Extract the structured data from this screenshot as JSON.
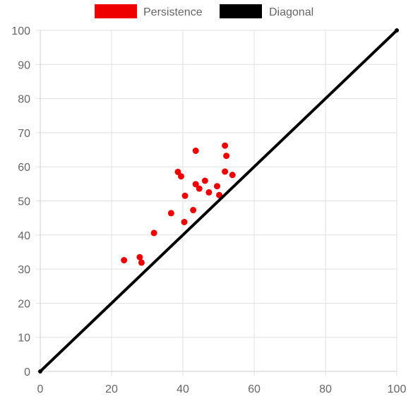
{
  "chart_data": {
    "type": "scatter",
    "title": "",
    "xlabel": "",
    "ylabel": "",
    "xlim": [
      0,
      100
    ],
    "ylim": [
      0,
      100
    ],
    "x_ticks": [
      "0",
      "20",
      "40",
      "60",
      "80",
      "100"
    ],
    "y_ticks": [
      "0",
      "10",
      "20",
      "30",
      "40",
      "50",
      "60",
      "70",
      "80",
      "90",
      "100"
    ],
    "grid": true,
    "legend_position": "top-center",
    "series": [
      {
        "name": "Persistence",
        "type": "scatter",
        "color": "#ee0000",
        "points": [
          {
            "x": 23.5,
            "y": 32.6
          },
          {
            "x": 27.9,
            "y": 33.5
          },
          {
            "x": 28.4,
            "y": 31.9
          },
          {
            "x": 31.9,
            "y": 40.6
          },
          {
            "x": 36.7,
            "y": 46.4
          },
          {
            "x": 38.6,
            "y": 58.5
          },
          {
            "x": 39.5,
            "y": 57.2
          },
          {
            "x": 40.4,
            "y": 43.8
          },
          {
            "x": 40.6,
            "y": 51.5
          },
          {
            "x": 42.9,
            "y": 47.3
          },
          {
            "x": 43.6,
            "y": 64.7
          },
          {
            "x": 43.6,
            "y": 54.9
          },
          {
            "x": 44.6,
            "y": 53.6
          },
          {
            "x": 46.2,
            "y": 55.9
          },
          {
            "x": 47.3,
            "y": 52.5
          },
          {
            "x": 49.6,
            "y": 54.3
          },
          {
            "x": 50.2,
            "y": 51.7
          },
          {
            "x": 51.8,
            "y": 66.2
          },
          {
            "x": 51.8,
            "y": 58.6
          },
          {
            "x": 52.2,
            "y": 63.2
          },
          {
            "x": 53.9,
            "y": 57.6
          }
        ]
      },
      {
        "name": "Diagonal",
        "type": "line",
        "color": "#000000",
        "points": [
          {
            "x": 0,
            "y": 0
          },
          {
            "x": 100,
            "y": 100
          }
        ]
      }
    ]
  }
}
